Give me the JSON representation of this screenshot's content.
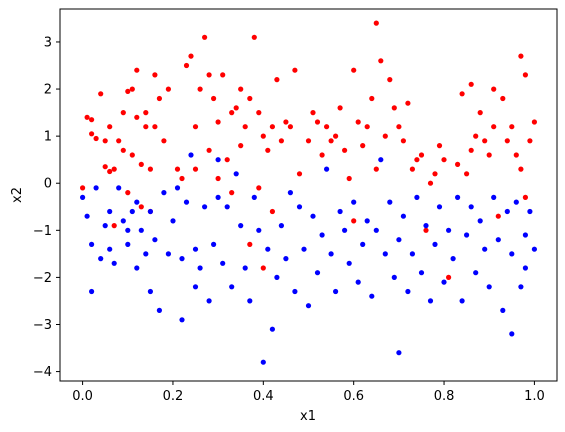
{
  "chart_data": {
    "type": "scatter",
    "title": "",
    "xlabel": "x1",
    "ylabel": "x2",
    "xlim": [
      -0.05,
      1.05
    ],
    "ylim": [
      -4.2,
      3.7
    ],
    "xticks": [
      0.0,
      0.2,
      0.4,
      0.6,
      0.8,
      1.0
    ],
    "xtick_labels": [
      "0.0",
      "0.2",
      "0.4",
      "0.6",
      "0.8",
      "1.0"
    ],
    "yticks": [
      -4,
      -3,
      -2,
      -1,
      0,
      1,
      2,
      3
    ],
    "ytick_labels": [
      "−4",
      "−3",
      "−2",
      "−1",
      "0",
      "1",
      "2",
      "3"
    ],
    "grid": false,
    "legend": false,
    "series": [
      {
        "color": "#ff0000",
        "points": [
          [
            0.0,
            -0.1
          ],
          [
            0.01,
            1.4
          ],
          [
            0.02,
            1.35
          ],
          [
            0.02,
            1.05
          ],
          [
            0.03,
            0.95
          ],
          [
            0.04,
            1.9
          ],
          [
            0.05,
            0.9
          ],
          [
            0.05,
            0.35
          ],
          [
            0.06,
            0.25
          ],
          [
            0.06,
            1.2
          ],
          [
            0.07,
            -0.9
          ],
          [
            0.07,
            0.3
          ],
          [
            0.08,
            0.9
          ],
          [
            0.09,
            0.7
          ],
          [
            0.09,
            1.5
          ],
          [
            0.1,
            1.95
          ],
          [
            0.1,
            -0.2
          ],
          [
            0.11,
            0.6
          ],
          [
            0.11,
            2.0
          ],
          [
            0.12,
            2.4
          ],
          [
            0.12,
            1.4
          ],
          [
            0.13,
            0.4
          ],
          [
            0.13,
            -0.5
          ],
          [
            0.14,
            1.2
          ],
          [
            0.14,
            1.5
          ],
          [
            0.15,
            0.3
          ],
          [
            0.15,
            -0.6
          ],
          [
            0.16,
            1.2
          ],
          [
            0.16,
            2.3
          ],
          [
            0.17,
            1.8
          ],
          [
            0.18,
            0.9
          ],
          [
            0.19,
            2.0
          ],
          [
            0.21,
            0.3
          ],
          [
            0.22,
            0.1
          ],
          [
            0.23,
            2.5
          ],
          [
            0.24,
            2.7
          ],
          [
            0.25,
            1.2
          ],
          [
            0.25,
            0.3
          ],
          [
            0.26,
            2.0
          ],
          [
            0.27,
            3.1
          ],
          [
            0.28,
            2.3
          ],
          [
            0.28,
            0.7
          ],
          [
            0.29,
            1.8
          ],
          [
            0.3,
            1.3
          ],
          [
            0.3,
            0.1
          ],
          [
            0.31,
            2.3
          ],
          [
            0.32,
            0.5
          ],
          [
            0.33,
            1.5
          ],
          [
            0.33,
            -0.2
          ],
          [
            0.34,
            1.6
          ],
          [
            0.35,
            2.0
          ],
          [
            0.35,
            0.8
          ],
          [
            0.36,
            1.2
          ],
          [
            0.37,
            1.8
          ],
          [
            0.37,
            -1.3
          ],
          [
            0.38,
            3.1
          ],
          [
            0.39,
            1.5
          ],
          [
            0.39,
            -0.1
          ],
          [
            0.4,
            1.0
          ],
          [
            0.4,
            -1.8
          ],
          [
            0.41,
            0.7
          ],
          [
            0.42,
            1.2
          ],
          [
            0.42,
            -0.6
          ],
          [
            0.43,
            2.2
          ],
          [
            0.44,
            0.9
          ],
          [
            0.45,
            1.3
          ],
          [
            0.46,
            1.2
          ],
          [
            0.47,
            2.4
          ],
          [
            0.48,
            0.2
          ],
          [
            0.5,
            0.9
          ],
          [
            0.51,
            1.5
          ],
          [
            0.52,
            1.3
          ],
          [
            0.53,
            0.6
          ],
          [
            0.54,
            1.2
          ],
          [
            0.55,
            0.9
          ],
          [
            0.56,
            1.0
          ],
          [
            0.57,
            1.6
          ],
          [
            0.58,
            0.7
          ],
          [
            0.59,
            0.1
          ],
          [
            0.6,
            2.4
          ],
          [
            0.6,
            -0.8
          ],
          [
            0.61,
            1.3
          ],
          [
            0.62,
            0.8
          ],
          [
            0.63,
            1.2
          ],
          [
            0.64,
            1.8
          ],
          [
            0.65,
            3.4
          ],
          [
            0.65,
            0.3
          ],
          [
            0.66,
            2.6
          ],
          [
            0.67,
            1.0
          ],
          [
            0.68,
            2.2
          ],
          [
            0.69,
            1.6
          ],
          [
            0.7,
            1.2
          ],
          [
            0.71,
            0.9
          ],
          [
            0.72,
            1.7
          ],
          [
            0.73,
            0.3
          ],
          [
            0.74,
            0.5
          ],
          [
            0.75,
            0.6
          ],
          [
            0.76,
            -1.0
          ],
          [
            0.77,
            0.0
          ],
          [
            0.78,
            0.2
          ],
          [
            0.79,
            0.8
          ],
          [
            0.8,
            0.5
          ],
          [
            0.81,
            -2.0
          ],
          [
            0.83,
            0.4
          ],
          [
            0.84,
            1.9
          ],
          [
            0.85,
            0.2
          ],
          [
            0.86,
            2.1
          ],
          [
            0.86,
            0.7
          ],
          [
            0.87,
            1.0
          ],
          [
            0.88,
            1.5
          ],
          [
            0.89,
            0.9
          ],
          [
            0.9,
            0.6
          ],
          [
            0.91,
            2.0
          ],
          [
            0.91,
            1.2
          ],
          [
            0.92,
            -0.7
          ],
          [
            0.93,
            1.8
          ],
          [
            0.94,
            0.9
          ],
          [
            0.95,
            1.2
          ],
          [
            0.96,
            0.6
          ],
          [
            0.97,
            2.7
          ],
          [
            0.97,
            0.3
          ],
          [
            0.98,
            2.3
          ],
          [
            0.98,
            -0.3
          ],
          [
            0.99,
            0.9
          ],
          [
            1.0,
            1.3
          ]
        ]
      },
      {
        "color": "#0000ff",
        "points": [
          [
            0.0,
            -0.3
          ],
          [
            0.01,
            -0.7
          ],
          [
            0.02,
            -1.3
          ],
          [
            0.02,
            -2.3
          ],
          [
            0.03,
            -0.1
          ],
          [
            0.04,
            -1.6
          ],
          [
            0.05,
            -0.9
          ],
          [
            0.06,
            -1.4
          ],
          [
            0.06,
            -0.6
          ],
          [
            0.07,
            -1.7
          ],
          [
            0.08,
            -0.1
          ],
          [
            0.09,
            -0.8
          ],
          [
            0.1,
            -1.0
          ],
          [
            0.1,
            -1.3
          ],
          [
            0.11,
            -0.6
          ],
          [
            0.12,
            -1.8
          ],
          [
            0.12,
            -0.4
          ],
          [
            0.13,
            -1.0
          ],
          [
            0.14,
            -1.5
          ],
          [
            0.15,
            -2.3
          ],
          [
            0.15,
            -0.6
          ],
          [
            0.16,
            -1.2
          ],
          [
            0.17,
            -2.7
          ],
          [
            0.18,
            -0.2
          ],
          [
            0.19,
            -1.5
          ],
          [
            0.2,
            -0.8
          ],
          [
            0.21,
            -0.1
          ],
          [
            0.22,
            -1.6
          ],
          [
            0.22,
            -2.9
          ],
          [
            0.23,
            -0.4
          ],
          [
            0.24,
            0.6
          ],
          [
            0.25,
            -1.4
          ],
          [
            0.25,
            -2.2
          ],
          [
            0.26,
            -1.8
          ],
          [
            0.27,
            -0.5
          ],
          [
            0.28,
            -2.5
          ],
          [
            0.29,
            -1.3
          ],
          [
            0.3,
            0.5
          ],
          [
            0.3,
            -0.3
          ],
          [
            0.31,
            -1.7
          ],
          [
            0.32,
            -0.5
          ],
          [
            0.33,
            -2.2
          ],
          [
            0.34,
            0.2
          ],
          [
            0.35,
            -0.9
          ],
          [
            0.36,
            -1.8
          ],
          [
            0.37,
            -2.5
          ],
          [
            0.38,
            -0.3
          ],
          [
            0.39,
            -1.0
          ],
          [
            0.4,
            -3.8
          ],
          [
            0.41,
            -1.4
          ],
          [
            0.42,
            -3.1
          ],
          [
            0.43,
            -2.0
          ],
          [
            0.44,
            -0.9
          ],
          [
            0.45,
            -1.6
          ],
          [
            0.46,
            -0.2
          ],
          [
            0.47,
            -2.3
          ],
          [
            0.48,
            -0.5
          ],
          [
            0.49,
            -1.4
          ],
          [
            0.5,
            -2.6
          ],
          [
            0.51,
            -0.7
          ],
          [
            0.52,
            -1.9
          ],
          [
            0.53,
            -1.1
          ],
          [
            0.54,
            0.3
          ],
          [
            0.55,
            -1.5
          ],
          [
            0.56,
            -2.3
          ],
          [
            0.57,
            -0.6
          ],
          [
            0.58,
            -1.0
          ],
          [
            0.59,
            -1.7
          ],
          [
            0.6,
            -0.4
          ],
          [
            0.61,
            -2.1
          ],
          [
            0.62,
            -1.3
          ],
          [
            0.63,
            -0.8
          ],
          [
            0.64,
            -2.4
          ],
          [
            0.65,
            -1.0
          ],
          [
            0.66,
            0.5
          ],
          [
            0.67,
            -1.5
          ],
          [
            0.68,
            -0.4
          ],
          [
            0.69,
            -2.0
          ],
          [
            0.7,
            -1.2
          ],
          [
            0.7,
            -3.6
          ],
          [
            0.71,
            -0.7
          ],
          [
            0.72,
            -2.3
          ],
          [
            0.73,
            -1.5
          ],
          [
            0.74,
            -0.3
          ],
          [
            0.75,
            -1.9
          ],
          [
            0.76,
            -0.9
          ],
          [
            0.77,
            -2.5
          ],
          [
            0.78,
            -1.3
          ],
          [
            0.79,
            -0.5
          ],
          [
            0.8,
            -2.1
          ],
          [
            0.81,
            -1.0
          ],
          [
            0.82,
            -1.6
          ],
          [
            0.83,
            -0.3
          ],
          [
            0.84,
            -2.5
          ],
          [
            0.85,
            -1.1
          ],
          [
            0.86,
            -0.5
          ],
          [
            0.87,
            -1.9
          ],
          [
            0.88,
            -0.8
          ],
          [
            0.89,
            -1.4
          ],
          [
            0.9,
            -2.2
          ],
          [
            0.91,
            -0.3
          ],
          [
            0.92,
            -1.2
          ],
          [
            0.93,
            -2.7
          ],
          [
            0.94,
            -0.6
          ],
          [
            0.95,
            -3.2
          ],
          [
            0.95,
            -1.5
          ],
          [
            0.96,
            -0.4
          ],
          [
            0.97,
            -2.2
          ],
          [
            0.98,
            -1.1
          ],
          [
            0.98,
            -1.8
          ],
          [
            0.99,
            -0.6
          ],
          [
            1.0,
            -1.4
          ]
        ]
      }
    ]
  }
}
